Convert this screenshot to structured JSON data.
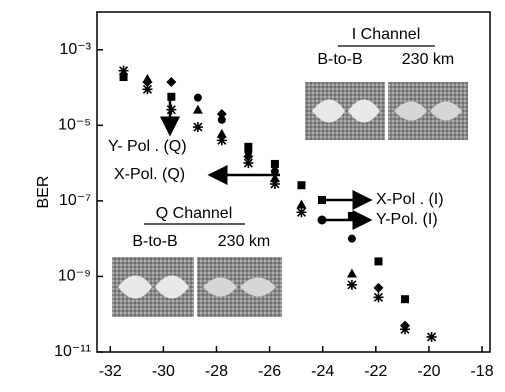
{
  "chart_data": {
    "type": "scatter",
    "ylabel": "BER",
    "yscale": "log",
    "xlim": [
      -32.5,
      -17.7
    ],
    "xticks": [
      -32,
      -30,
      -28,
      -26,
      -24,
      -22,
      -20,
      -18
    ],
    "ylim": [
      1e-11,
      0.01
    ],
    "yticks": [
      {
        "value": 1e-11,
        "label": "10⁻¹¹"
      },
      {
        "value": 1e-09,
        "label": "10⁻⁹"
      },
      {
        "value": 1e-07,
        "label": "10⁻⁷"
      },
      {
        "value": 1e-05,
        "label": "10⁻⁵"
      },
      {
        "value": 0.001,
        "label": "10⁻³"
      }
    ],
    "series": [
      {
        "marker": "square",
        "color": "#000000",
        "x": [
          -31.5,
          -29.7,
          -26.8,
          -25.8,
          -24.8,
          -22.9,
          -21.9,
          -20.9
        ],
        "values": [
          0.00019,
          5.7e-05,
          2.7e-06,
          9.5e-07,
          2.6e-07,
          4e-08,
          2.5e-09,
          2.5e-10
        ]
      },
      {
        "marker": "circle",
        "color": "#000000",
        "x": [
          -28.7,
          -27.8,
          -26.8,
          -25.8,
          -22.9
        ],
        "values": [
          5.4e-05,
          1.4e-05,
          2e-06,
          6e-07,
          1e-08
        ]
      },
      {
        "marker": "triangle",
        "color": "#000000",
        "x": [
          -30.6,
          -28.7,
          -27.8,
          -25.8,
          -24.8,
          -22.9
        ],
        "values": [
          0.00017,
          2.6e-05,
          6e-06,
          4e-07,
          8e-08,
          1.2e-09
        ]
      },
      {
        "marker": "diamond",
        "color": "#000000",
        "x": [
          -30.6,
          -29.7,
          -27.8,
          -26.8,
          -21.9,
          -20.9
        ],
        "values": [
          0.00014,
          0.00014,
          2e-05,
          1.5e-06,
          5e-10,
          5e-11
        ]
      },
      {
        "marker": "star",
        "color": "#000000",
        "x": [
          -31.5,
          -30.6,
          -29.7,
          -28.7,
          -27.8,
          -26.8,
          -25.8,
          -24.8,
          -22.9,
          -21.9,
          -20.9,
          -19.9
        ],
        "values": [
          0.00028,
          9e-05,
          2.6e-05,
          9e-06,
          4e-06,
          1e-06,
          2.8e-07,
          5e-08,
          6e-10,
          2.8e-10,
          4e-11,
          2.5e-11
        ]
      }
    ],
    "annotations": [
      "I Channel",
      "B-to-B",
      "230 km",
      "Q Channel",
      "B-to-B",
      "230 km",
      "Y- Pol . (Q)",
      "X-Pol. (Q)",
      "X-Pol . (I)",
      "Y-Pol. (I)"
    ]
  }
}
